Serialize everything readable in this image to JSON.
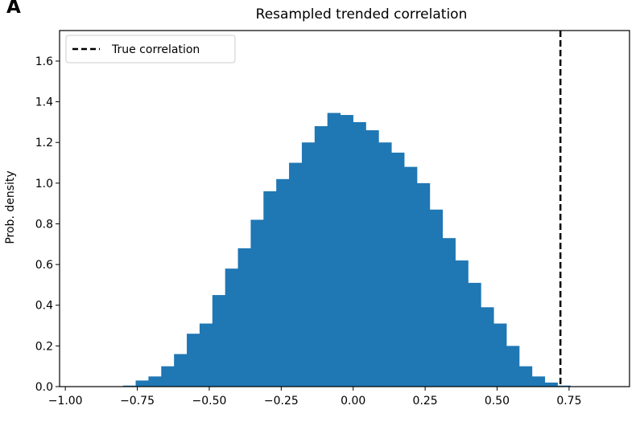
{
  "panel_label": "A",
  "chart_data": {
    "type": "bar",
    "title": "Resampled trended correlation",
    "xlabel": "",
    "ylabel": "Prob. density",
    "xlim": [
      -1.02,
      0.96
    ],
    "ylim": [
      0,
      1.75
    ],
    "xticks": [
      -1.0,
      -0.75,
      -0.5,
      -0.25,
      0.0,
      0.25,
      0.5,
      0.75
    ],
    "xtick_labels": [
      "−1.00",
      "−0.75",
      "−0.50",
      "−0.25",
      "0.00",
      "0.25",
      "0.50",
      "0.75"
    ],
    "yticks": [
      0.0,
      0.2,
      0.4,
      0.6,
      0.8,
      1.0,
      1.2,
      1.4,
      1.6
    ],
    "ytick_labels": [
      "0.0",
      "0.2",
      "0.4",
      "0.6",
      "0.8",
      "1.0",
      "1.2",
      "1.4",
      "1.6"
    ],
    "bar_color": "#1f77b4",
    "bin_width": 0.0444,
    "bin_edges_start": -0.8,
    "values": [
      0.005,
      0.03,
      0.05,
      0.1,
      0.16,
      0.26,
      0.31,
      0.45,
      0.58,
      0.68,
      0.82,
      0.96,
      1.02,
      1.1,
      1.2,
      1.28,
      1.345,
      1.335,
      1.3,
      1.26,
      1.2,
      1.15,
      1.08,
      1.0,
      0.87,
      0.73,
      0.62,
      0.51,
      0.39,
      0.31,
      0.2,
      0.1,
      0.05,
      0.02,
      0.005
    ],
    "reference_line": {
      "x": 0.72,
      "style": "dashed",
      "color": "#000000"
    },
    "legend": {
      "position": "top-left",
      "entries": [
        {
          "label": "True correlation",
          "style": "dashed-line"
        }
      ]
    },
    "grid": false
  }
}
